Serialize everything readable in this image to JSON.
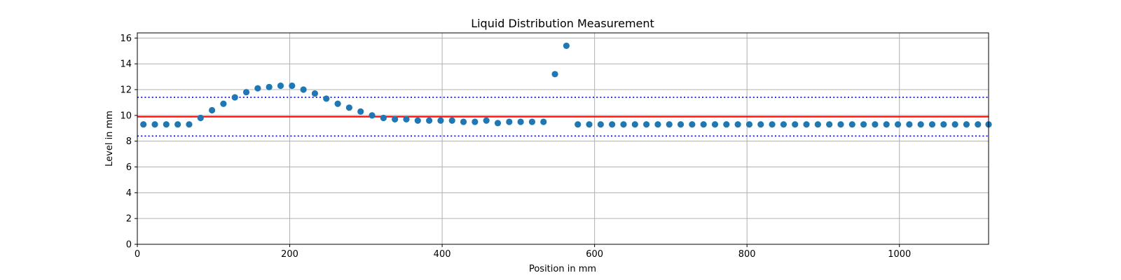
{
  "chart_data": {
    "type": "scatter",
    "title": "Liquid Distribution Measurement",
    "xlabel": "Position in mm",
    "ylabel": "Level in mm",
    "xlim": [
      0,
      1117
    ],
    "ylim": [
      0,
      16.4
    ],
    "xticks": [
      0,
      200,
      400,
      600,
      800,
      1000
    ],
    "yticks": [
      0,
      2,
      4,
      6,
      8,
      10,
      12,
      14,
      16
    ],
    "grid": true,
    "colors": {
      "points": "#1f77b4",
      "reference_line": "#ff0000",
      "tolerance_lines": "#0000ff",
      "grid": "#b0b0b0"
    },
    "reference_line": {
      "y": 9.9,
      "style": "solid"
    },
    "tolerance_lines": [
      {
        "y": 11.4,
        "style": "dotted"
      },
      {
        "y": 8.4,
        "style": "dotted"
      }
    ],
    "series": [
      {
        "x": [
          8,
          23,
          38,
          53,
          68,
          83,
          98,
          113,
          128,
          143,
          158,
          173,
          188,
          203,
          218,
          233,
          248,
          263,
          278,
          293,
          308,
          323,
          338,
          353,
          368,
          383,
          398,
          413,
          428,
          443,
          458,
          473,
          488,
          503,
          518,
          533,
          548,
          563,
          578,
          593,
          608,
          623,
          638,
          653,
          668,
          683,
          698,
          713,
          728,
          743,
          758,
          773,
          788,
          803,
          818,
          833,
          848,
          863,
          878,
          893,
          908,
          923,
          938,
          953,
          968,
          983,
          998,
          1013,
          1028,
          1043,
          1058,
          1073,
          1088,
          1103,
          1117
        ],
        "y": [
          9.3,
          9.3,
          9.3,
          9.3,
          9.3,
          9.8,
          10.4,
          10.9,
          11.4,
          11.8,
          12.1,
          12.2,
          12.3,
          12.3,
          12.0,
          11.7,
          11.3,
          10.9,
          10.6,
          10.3,
          10.0,
          9.8,
          9.7,
          9.7,
          9.6,
          9.6,
          9.6,
          9.6,
          9.5,
          9.5,
          9.6,
          9.4,
          9.5,
          9.5,
          9.5,
          9.5,
          13.2,
          15.4,
          9.3,
          9.3,
          9.3,
          9.3,
          9.3,
          9.3,
          9.3,
          9.3,
          9.3,
          9.3,
          9.3,
          9.3,
          9.3,
          9.3,
          9.3,
          9.3,
          9.3,
          9.3,
          9.3,
          9.3,
          9.3,
          9.3,
          9.3,
          9.3,
          9.3,
          9.3,
          9.3,
          9.3,
          9.3,
          9.3,
          9.3,
          9.3,
          9.3,
          9.3,
          9.3,
          9.3,
          9.3
        ]
      }
    ]
  }
}
